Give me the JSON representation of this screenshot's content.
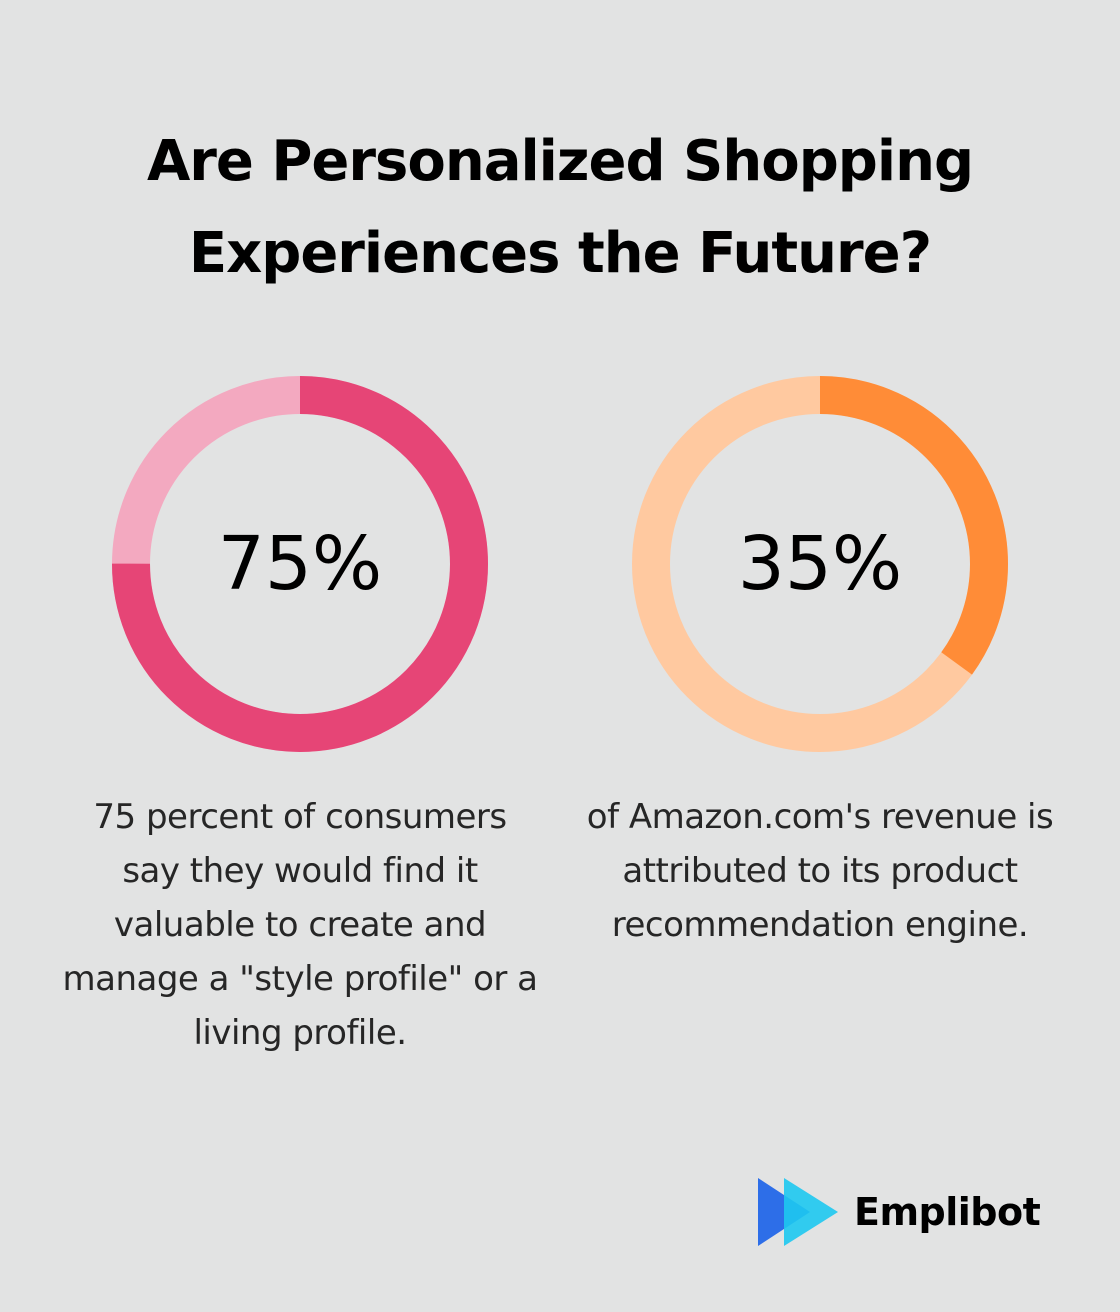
{
  "title_lines": [
    "Are Personalized Shopping",
    "Experiences the Future?"
  ],
  "chart_data": [
    {
      "type": "pie",
      "donut": true,
      "value": 75,
      "label": "75%",
      "caption": "75 percent of consumers say they would find it valuable to create and manage a \"style profile\" or a living profile.",
      "colors": {
        "filled": "#e64576",
        "remaining": "#f3a9c0"
      }
    },
    {
      "type": "pie",
      "donut": true,
      "value": 35,
      "label": "35%",
      "caption": "of Amazon.com's revenue is attributed to its product recommendation engine.",
      "colors": {
        "filled": "#ff8c37",
        "remaining": "#ffc9a0"
      }
    }
  ],
  "brand": {
    "name": "Emplibot",
    "logo_icon": "double-play-arrow-icon",
    "logo_colors": [
      "#2d6ee8",
      "#1ec8f0"
    ]
  }
}
